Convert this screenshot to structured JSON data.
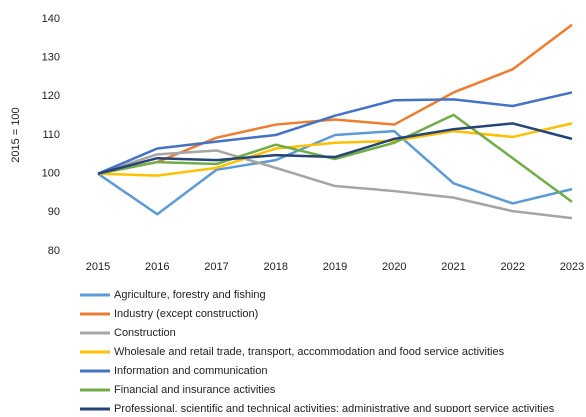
{
  "chart_data": {
    "type": "line",
    "ylabel": "2015 = 100",
    "categories": [
      "2015",
      "2016",
      "2017",
      "2018",
      "2019",
      "2020",
      "2021",
      "2022",
      "2023"
    ],
    "series": [
      {
        "name": "Agriculture, forestry and fishing",
        "color": "#5b9bd5",
        "values": [
          100,
          89.5,
          101,
          103.5,
          110,
          111,
          97.5,
          92.3,
          96
        ]
      },
      {
        "name": "Industry (except construction)",
        "color": "#ed7d31",
        "values": [
          100,
          103,
          109.3,
          112.7,
          114,
          112.7,
          121,
          127,
          138.5
        ]
      },
      {
        "name": "Construction",
        "color": "#a5a5a5",
        "values": [
          100,
          105,
          106,
          101.5,
          96.8,
          95.5,
          93.8,
          90.3,
          88.5
        ]
      },
      {
        "name": "Wholesale and retail trade, transport, accommodation and food service activities",
        "color": "#ffc000",
        "values": [
          100,
          99.5,
          101.5,
          106.5,
          108,
          108.5,
          111,
          109.5,
          113
        ]
      },
      {
        "name": "Information and communication",
        "color": "#4472c4",
        "values": [
          100,
          106.5,
          108.3,
          110,
          115,
          119,
          119.2,
          117.5,
          121
        ]
      },
      {
        "name": "Financial and insurance activities",
        "color": "#70ad47",
        "values": [
          100,
          103,
          102.5,
          107.5,
          103.8,
          108,
          115.2,
          104,
          92.7
        ]
      },
      {
        "name": "Professional, scientific and technical activities; administrative and support service activities",
        "color": "#264478",
        "values": [
          100,
          104,
          103.5,
          104.8,
          104.3,
          109,
          111.5,
          113,
          109
        ]
      }
    ],
    "ylim": [
      80,
      140
    ],
    "yticks": [
      80,
      90,
      100,
      110,
      120,
      130,
      140
    ],
    "grid": false,
    "legend": "bottom"
  }
}
